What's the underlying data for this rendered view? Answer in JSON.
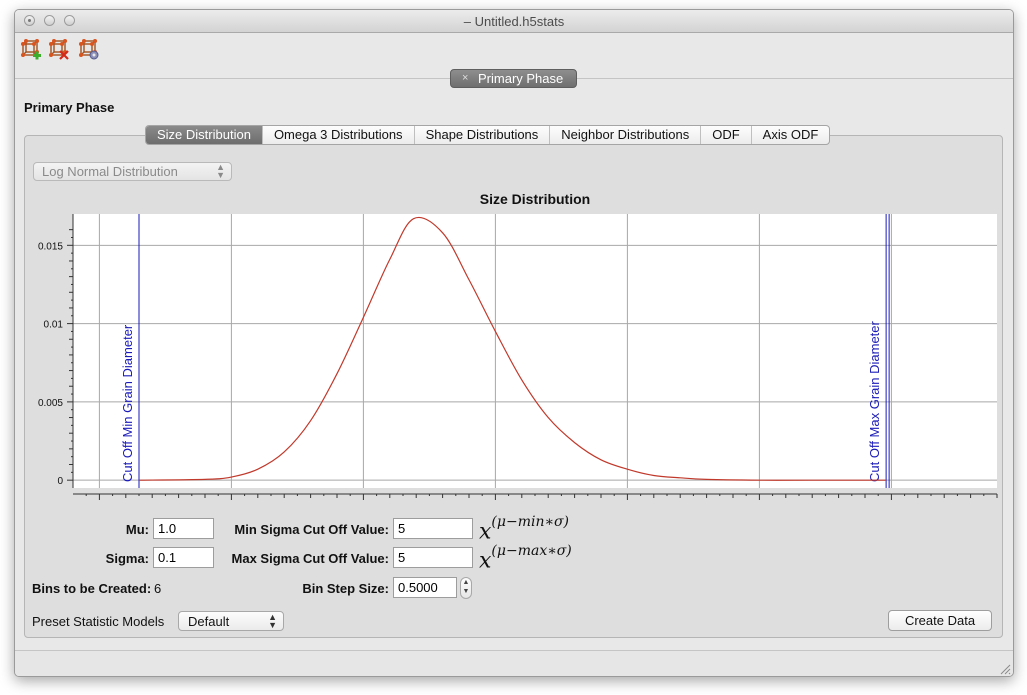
{
  "window": {
    "title": "– Untitled.h5stats"
  },
  "toolbar": {
    "icons": [
      "add-phase-icon",
      "remove-phase-icon",
      "edit-phase-icon"
    ]
  },
  "phase_tab": {
    "close": "×",
    "label": "Primary Phase"
  },
  "section_title": "Primary Phase",
  "tabs": [
    {
      "label": "Size Distribution",
      "active": true
    },
    {
      "label": "Omega 3 Distributions",
      "active": false
    },
    {
      "label": "Shape Distributions",
      "active": false
    },
    {
      "label": "Neighbor Distributions",
      "active": false
    },
    {
      "label": "ODF",
      "active": false
    },
    {
      "label": "Axis ODF",
      "active": false
    }
  ],
  "distribution_select": {
    "value": "Log Normal Distribution"
  },
  "chart_data": {
    "type": "line",
    "title": "Size Distribution",
    "xlim": [
      1.4,
      4.9
    ],
    "ylim": [
      -0.0005,
      0.017
    ],
    "x_ticks": [
      "1.5",
      "2",
      "2.5",
      "3",
      "3.5",
      "4",
      "4.5"
    ],
    "y_ticks": [
      "0",
      "0.005",
      "0.01",
      "0.015"
    ],
    "grid": true,
    "series": [
      {
        "color": "#c0392b",
        "x": [
          1.65,
          1.9,
          2.0,
          2.1,
          2.2,
          2.3,
          2.4,
          2.5,
          2.6,
          2.69,
          2.8,
          2.9,
          3.0,
          3.1,
          3.2,
          3.3,
          3.4,
          3.5,
          3.6,
          3.7,
          3.8,
          4.0,
          4.2,
          4.48
        ],
        "y": [
          0,
          5e-05,
          0.0002,
          0.0007,
          0.0018,
          0.0038,
          0.0068,
          0.0104,
          0.0141,
          0.0167,
          0.0158,
          0.0128,
          0.0095,
          0.0064,
          0.004,
          0.0024,
          0.0013,
          0.0007,
          0.0003,
          0.00015,
          5e-05,
          0,
          0,
          0
        ]
      }
    ],
    "markers": [
      {
        "x": 1.65,
        "label": "Cut Off Min Grain Diameter",
        "color": "#1a1ab8"
      },
      {
        "x": 4.48,
        "label": "Cut Off Max Grain Diameter",
        "color": "#1a1ab8"
      }
    ]
  },
  "form": {
    "mu": {
      "label": "Mu:",
      "value": "1.0"
    },
    "sigma": {
      "label": "Sigma:",
      "value": "0.1"
    },
    "bins": {
      "label": "Bins to be Created:",
      "value": "6"
    },
    "min_sigma": {
      "label": "Min Sigma Cut Off Value:",
      "value": "5"
    },
    "max_sigma": {
      "label": "Max Sigma Cut Off Value:",
      "value": "5"
    },
    "bin_step": {
      "label": "Bin Step Size:",
      "value": "0.5000"
    },
    "min_formula": {
      "base": "x",
      "exp": "(μ−min∗σ)"
    },
    "max_formula": {
      "base": "x",
      "exp": "(μ−max∗σ)"
    }
  },
  "preset": {
    "label": "Preset Statistic Models",
    "value": "Default"
  },
  "create_button": {
    "label": "Create Data"
  }
}
